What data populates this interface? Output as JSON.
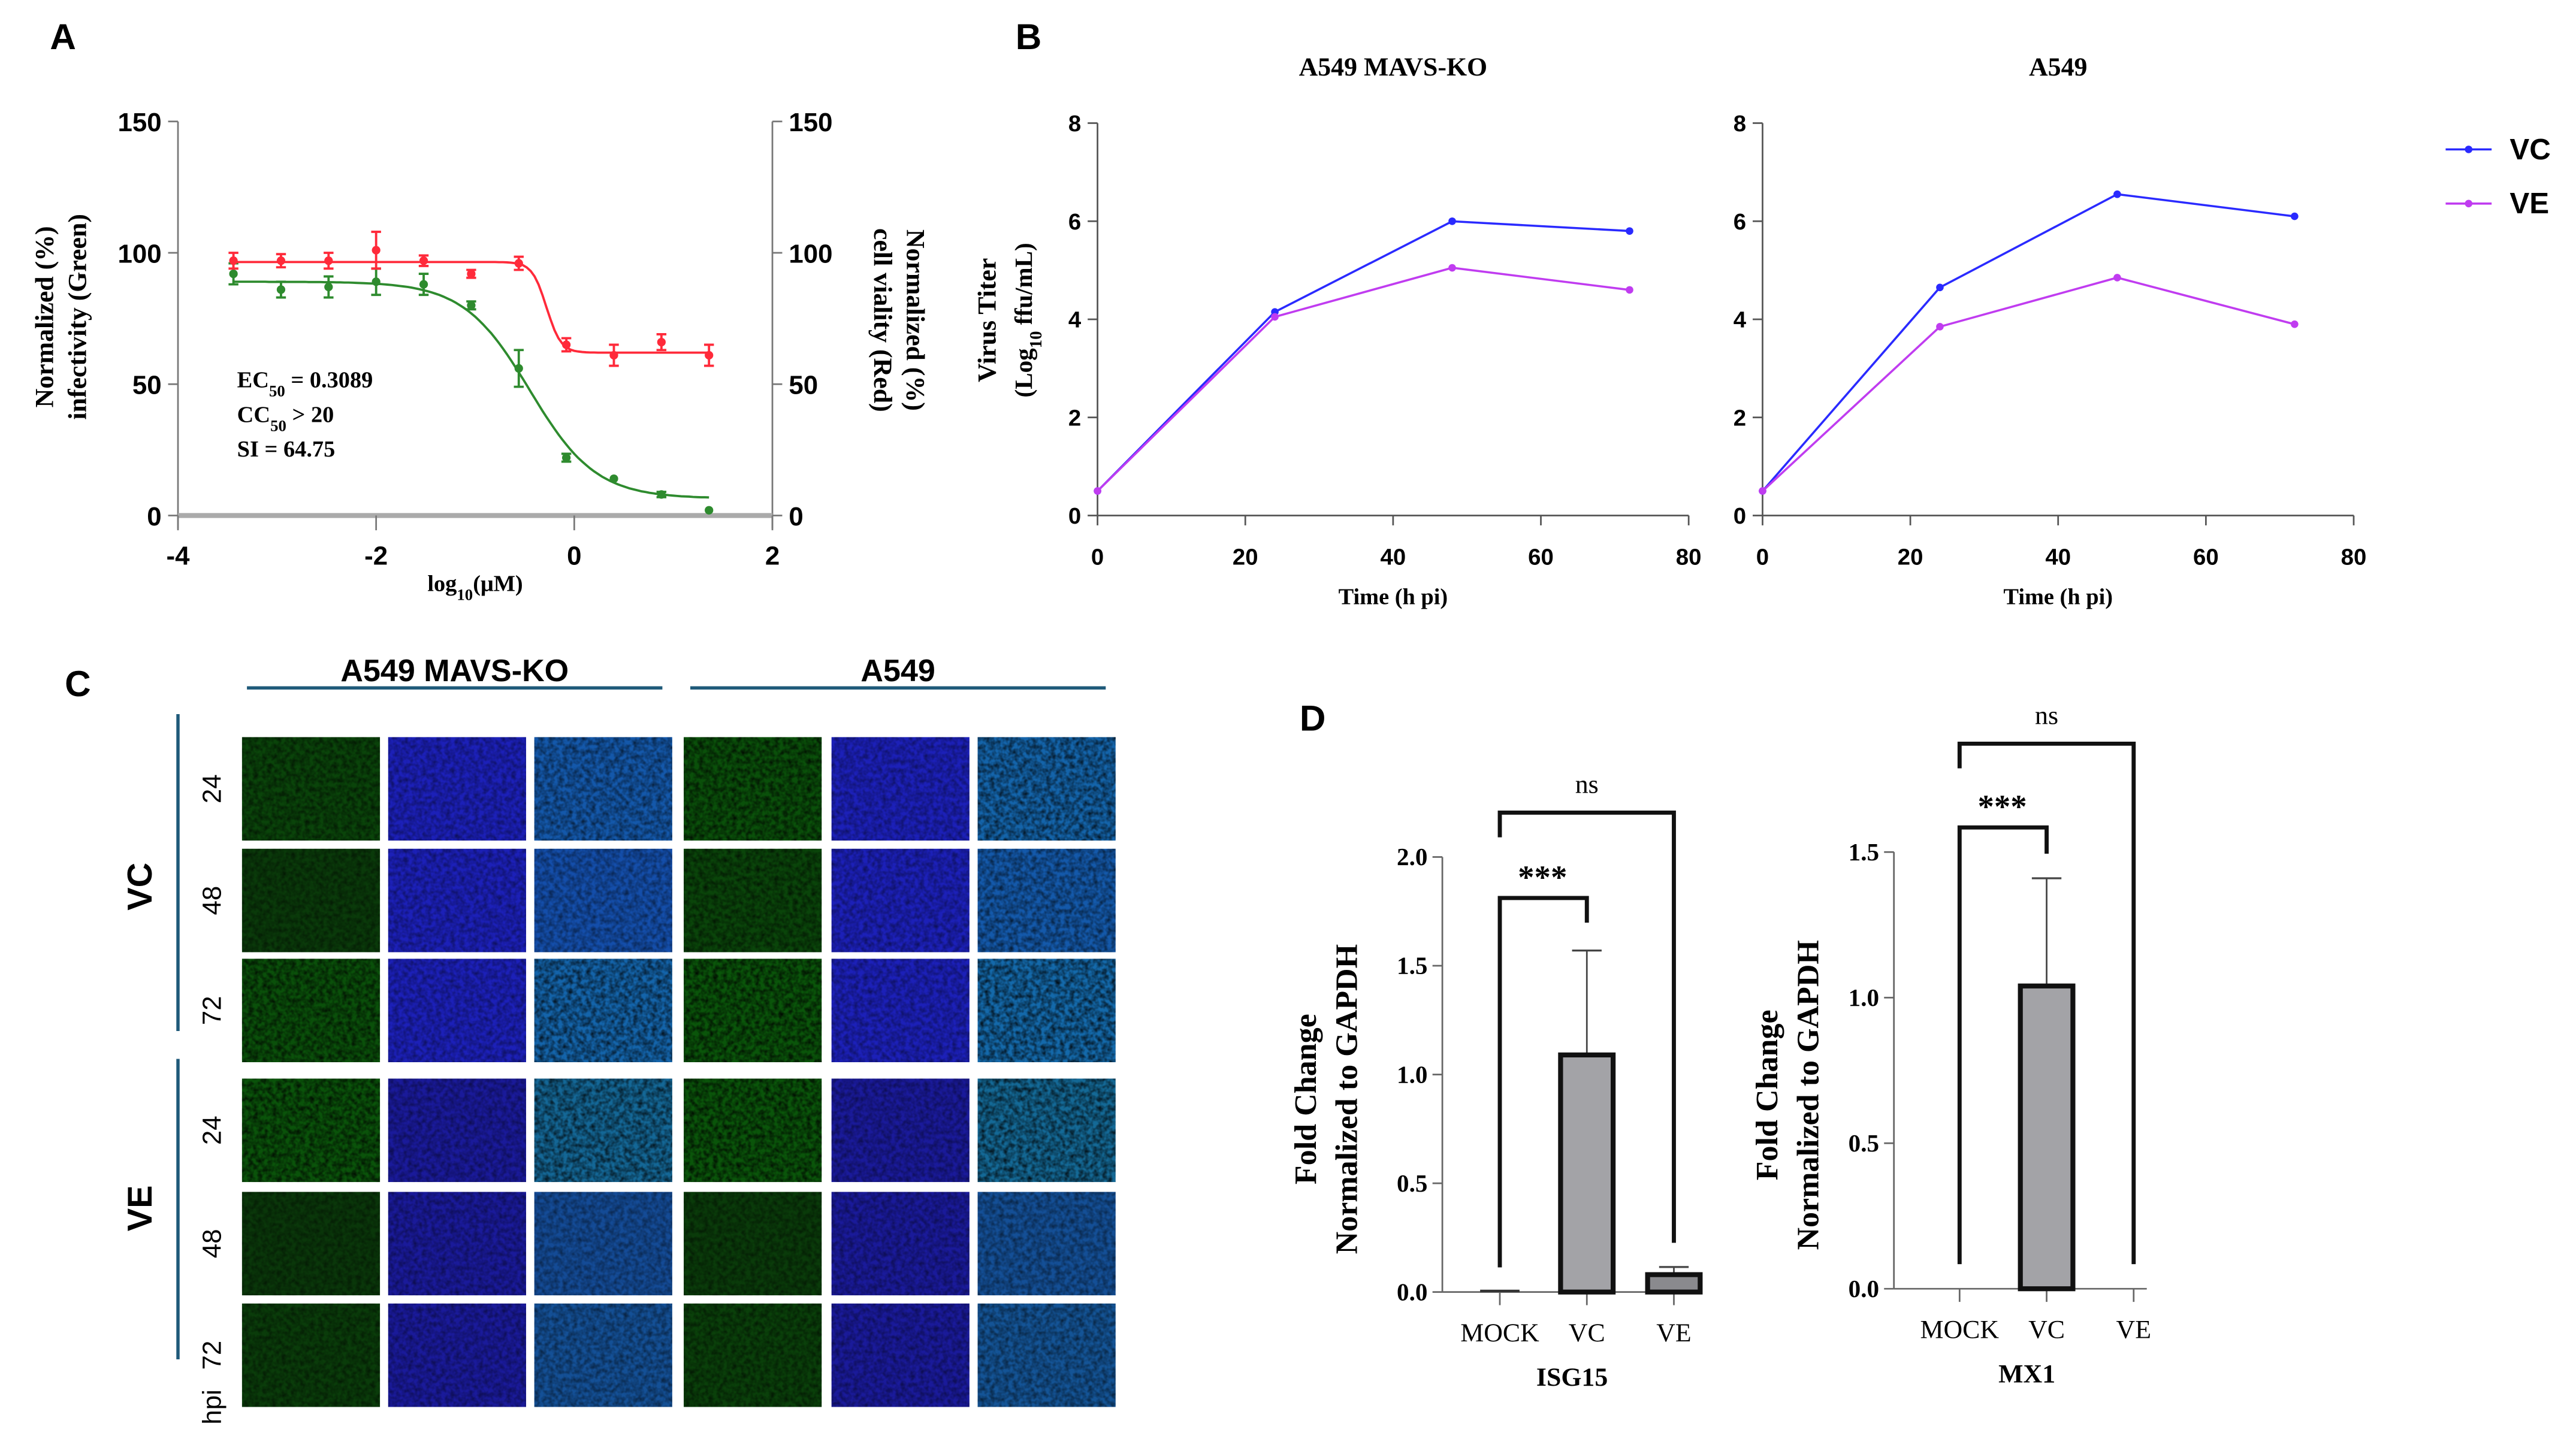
{
  "panel_letters": [
    "A",
    "B",
    "C",
    "D"
  ],
  "chart_data": [
    {
      "id": "A",
      "type": "scatter",
      "title": "",
      "xlabel": "log10(μM)",
      "xlabel_parts": {
        "base": "log",
        "sub": "10",
        "rest": "(μM)"
      },
      "ylabel_left": [
        "Normalized  (%)",
        "infectivity (Green)"
      ],
      "ylabel_right": [
        "Normalized (%)",
        "cell viality (Red)"
      ],
      "xlim": [
        -4,
        2
      ],
      "xticks": [
        "-4",
        "-2",
        "0",
        "2"
      ],
      "xtick_values": [
        -4,
        -2,
        0,
        2
      ],
      "ylim": [
        0,
        150
      ],
      "yticks": [
        "0",
        "50",
        "100",
        "150"
      ],
      "ytick_values": [
        0,
        50,
        100,
        150
      ],
      "x": [
        -3.44,
        -2.96,
        -2.48,
        -2.0,
        -1.52,
        -1.04,
        -0.56,
        -0.08,
        0.4,
        0.88,
        1.36
      ],
      "series": [
        {
          "name": "infectivity (Green)",
          "color": "#2e8b2e",
          "values": [
            92,
            86,
            87,
            89,
            88,
            80,
            56,
            22,
            14,
            8,
            2
          ],
          "errors": [
            4,
            3,
            4,
            5,
            4,
            1.5,
            7,
            1.5,
            0,
            1,
            0
          ],
          "fit": {
            "top": 89,
            "bottom": 6.5,
            "log_mid": -0.45,
            "hill": 1.3
          }
        },
        {
          "name": "cell viability (Red)",
          "color": "#ff2a3a",
          "values": [
            97,
            97,
            97,
            101,
            97,
            92,
            96,
            65,
            61,
            66,
            61
          ],
          "errors": [
            3,
            2.5,
            3,
            7,
            2,
            1.5,
            2.5,
            2.5,
            4,
            3,
            4
          ],
          "fit": {
            "top": 96.5,
            "bottom": 62,
            "log_mid": -0.28,
            "hill": 6
          }
        }
      ],
      "annotations": [
        {
          "label": "EC",
          "sub": "50",
          "rest": " = 0.3089"
        },
        {
          "label": "CC",
          "sub": "50",
          "rest": " > 20"
        },
        {
          "label": "SI",
          "sub": "",
          "rest": " = 64.75"
        }
      ]
    },
    {
      "id": "B1",
      "type": "line",
      "title": "A549 MAVS-KO",
      "xlabel": "Time (h pi)",
      "ylabel": [
        "Virus Titer",
        "(Log10 ffu/mL)"
      ],
      "ylabel_parts": {
        "base": "(Log",
        "sub": "10",
        "rest": " ffu/mL)"
      },
      "xlim": [
        0,
        80
      ],
      "xticks": [
        "0",
        "20",
        "40",
        "60",
        "80"
      ],
      "xtick_values": [
        0,
        20,
        40,
        60,
        80
      ],
      "ylim": [
        0,
        8
      ],
      "yticks": [
        "0",
        "2",
        "4",
        "6",
        "8"
      ],
      "ytick_values": [
        0,
        2,
        4,
        6,
        8
      ],
      "x": [
        0,
        24,
        48,
        72
      ],
      "series": [
        {
          "name": "VC",
          "color": "#2a2aff",
          "values": [
            0.5,
            4.15,
            6.0,
            5.8
          ]
        },
        {
          "name": "VE",
          "color": "#c03cf0",
          "values": [
            0.5,
            4.05,
            5.05,
            4.6
          ]
        }
      ]
    },
    {
      "id": "B2",
      "type": "line",
      "title": "A549",
      "xlabel": "Time (h pi)",
      "xlim": [
        0,
        80
      ],
      "xticks": [
        "0",
        "20",
        "40",
        "60",
        "80"
      ],
      "xtick_values": [
        0,
        20,
        40,
        60,
        80
      ],
      "ylim": [
        0,
        8
      ],
      "yticks": [
        "0",
        "2",
        "4",
        "6",
        "8"
      ],
      "ytick_values": [
        0,
        2,
        4,
        6,
        8
      ],
      "x": [
        0,
        24,
        48,
        72
      ],
      "series": [
        {
          "name": "VC",
          "color": "#2a2aff",
          "values": [
            0.5,
            4.65,
            6.55,
            6.1
          ]
        },
        {
          "name": "VE",
          "color": "#c03cf0",
          "values": [
            0.5,
            3.85,
            4.85,
            3.9
          ]
        }
      ],
      "legend": {
        "placement": "right",
        "entries": [
          "VC",
          "VE"
        ]
      }
    },
    {
      "id": "D1",
      "type": "bar",
      "title": "ISG15",
      "ylabel": [
        "Fold Change",
        "Normalized to GAPDH"
      ],
      "categories": [
        "MOCK",
        "VC",
        "VE"
      ],
      "values": [
        0.005,
        1.09,
        0.08
      ],
      "errors": [
        0,
        0.48,
        0.035
      ],
      "ylim": [
        0,
        2.0
      ],
      "yticks": [
        "0.0",
        "0.5",
        "1.0",
        "1.5",
        "2.0"
      ],
      "ytick_values": [
        0,
        0.5,
        1.0,
        1.5,
        2.0
      ],
      "significance": [
        {
          "from": "MOCK",
          "to": "VC",
          "label": "***"
        },
        {
          "from": "MOCK",
          "to": "VE",
          "label": "ns"
        }
      ]
    },
    {
      "id": "D2",
      "type": "bar",
      "title": "MX1",
      "ylabel": [
        "Fold Change",
        "Normalized to GAPDH"
      ],
      "categories": [
        "MOCK",
        "VC",
        "VE"
      ],
      "values": [
        0,
        1.04,
        0
      ],
      "errors": [
        0,
        0.37,
        0
      ],
      "ylim": [
        0,
        1.5
      ],
      "yticks": [
        "0.0",
        "0.5",
        "1.0",
        "1.5"
      ],
      "ytick_values": [
        0,
        0.5,
        1.0,
        1.5
      ],
      "significance": [
        {
          "from": "MOCK",
          "to": "VC",
          "label": "***"
        },
        {
          "from": "MOCK",
          "to": "VE",
          "label": "ns"
        }
      ]
    }
  ],
  "panel_c": {
    "column_groups": [
      "A549 MAVS-KO",
      "A549"
    ],
    "row_groups": [
      "VC",
      "VE"
    ],
    "row_labels": [
      "24",
      "48",
      "72"
    ],
    "hpi_label": "hpi"
  }
}
